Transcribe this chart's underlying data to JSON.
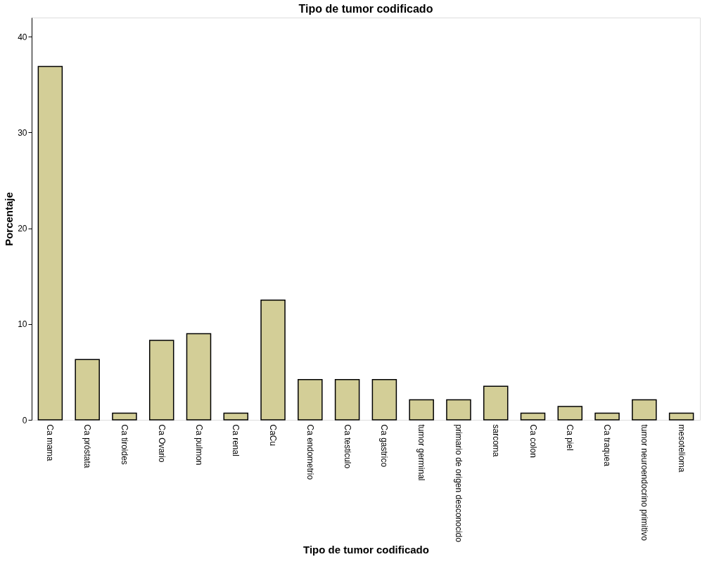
{
  "chart_data": {
    "type": "bar",
    "title": "Tipo de tumor codificado",
    "xlabel": "Tipo de tumor codificado",
    "ylabel": "Porcentaje",
    "categories": [
      "Ca mama",
      "Ca próstata",
      "Ca tiroides",
      "Ca Ovario",
      "Ca pulmon",
      "Ca renal",
      "CaCu",
      "Ca endometrio",
      "Ca testiculo",
      "Ca gastrico",
      "tumor germinal",
      "primario de origen desconocido",
      "sarcoma",
      "Ca colon",
      "Ca piel",
      "Ca traquea",
      "tumor neuroendocrino primitivo",
      "mesotelioma"
    ],
    "values": [
      36.9,
      6.3,
      0.7,
      8.3,
      9.0,
      0.7,
      12.5,
      4.2,
      4.2,
      4.2,
      2.1,
      2.1,
      3.5,
      0.7,
      1.4,
      0.7,
      2.1,
      0.7
    ],
    "color": "#d3ce97",
    "ylim": [
      0,
      42
    ],
    "yticks": [
      0,
      10,
      20,
      30,
      40
    ],
    "grid": false
  }
}
